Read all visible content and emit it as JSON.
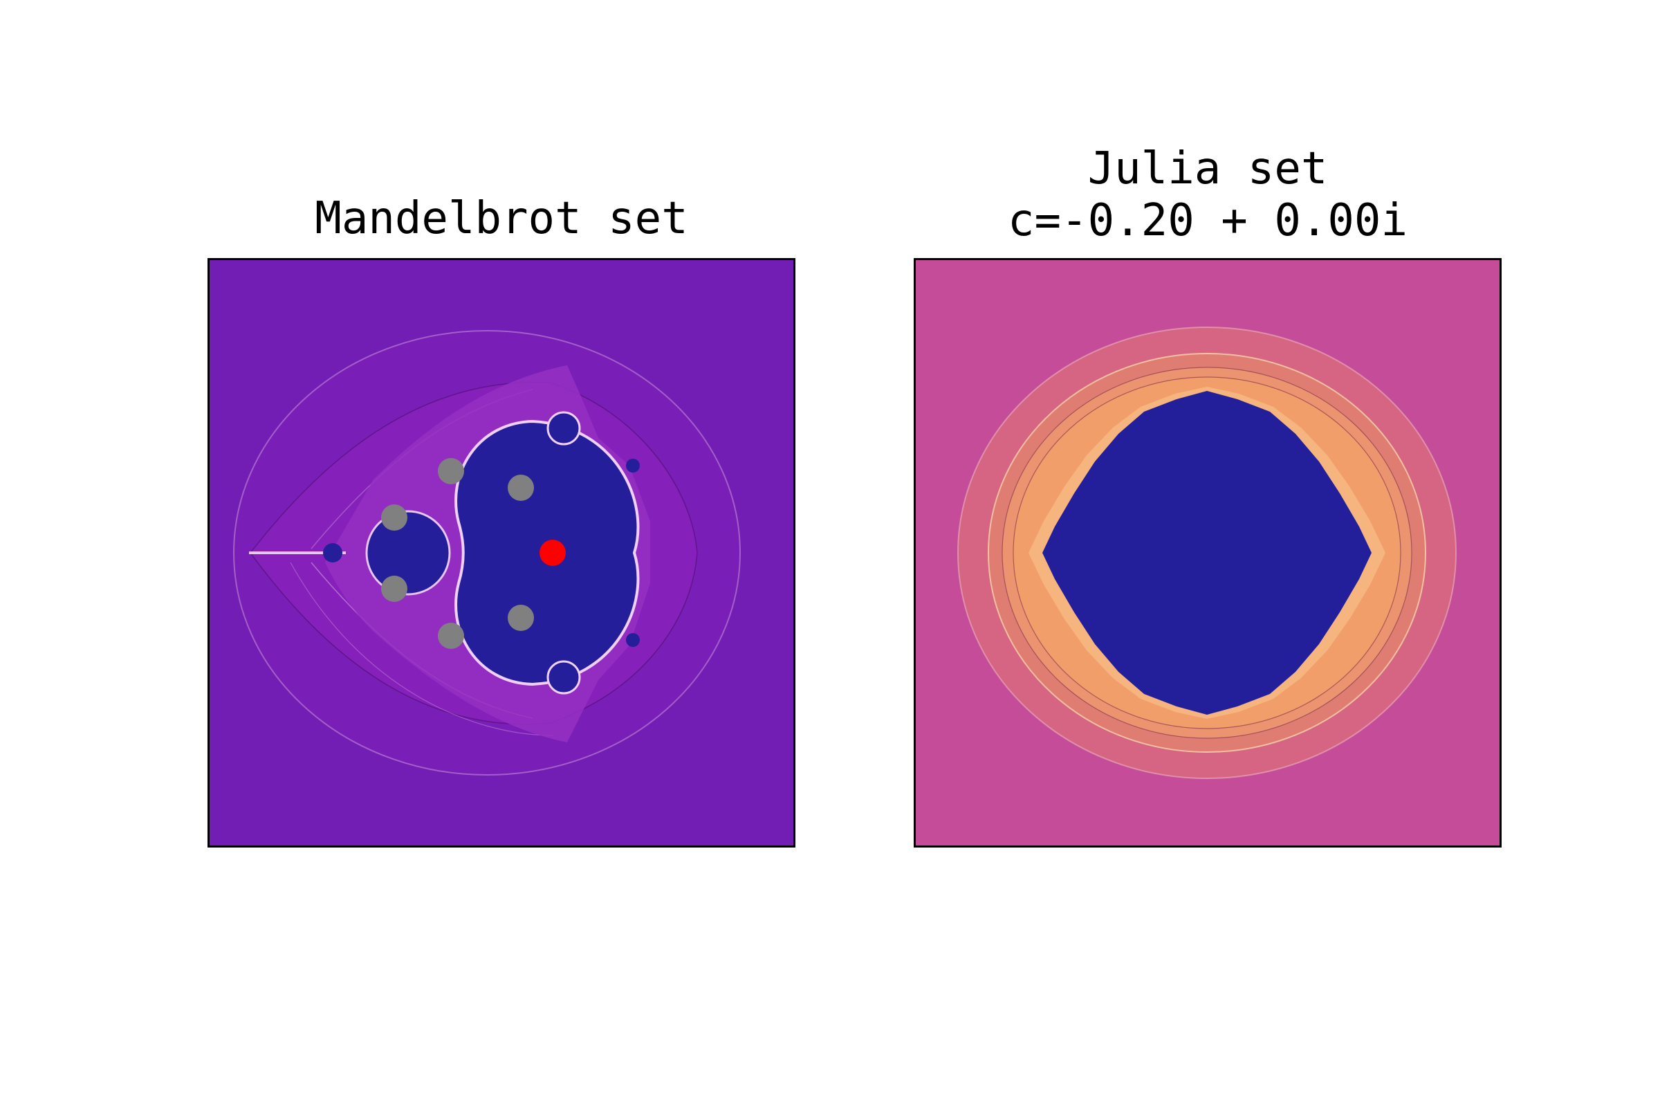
{
  "mandelbrot": {
    "title": "Mandelbrot set",
    "colors": {
      "background": "#721db4",
      "halo": "#8620ba",
      "set": "#241e9a",
      "marker_selected": "#ff0000",
      "marker_other": "#808080",
      "filament": "#c58bd8"
    }
  },
  "julia": {
    "title_line1": "Julia set",
    "title_line2": "c=-0.20 + 0.00i",
    "colors": {
      "background": "#c54c98",
      "ring_outer": "#d56582",
      "ring_mid": "#e07d73",
      "ring_inner": "#f19e6a",
      "set": "#231f9a"
    }
  }
}
